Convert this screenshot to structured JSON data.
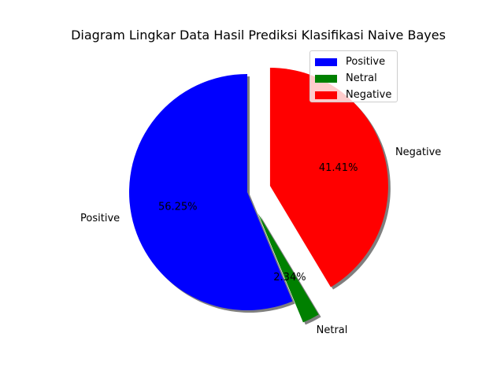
{
  "chart_data": {
    "type": "pie",
    "title": "Diagram Lingkar Data Hasil Prediksi Klasifikasi Naive Bayes",
    "slices": [
      {
        "label": "Positive",
        "value": 56.25,
        "pct_label": "56.25%",
        "color": "#0000ff",
        "explode": false
      },
      {
        "label": "Netral",
        "value": 2.34,
        "pct_label": "2.34%",
        "color": "#008000",
        "explode": true
      },
      {
        "label": "Negative",
        "value": 41.41,
        "pct_label": "41.41%",
        "color": "#ff0000",
        "explode": true
      }
    ],
    "start_angle_deg": 90,
    "shadow": true,
    "legend_placement": "top-right",
    "legend": [
      "Positive",
      "Netral",
      "Negative"
    ]
  }
}
